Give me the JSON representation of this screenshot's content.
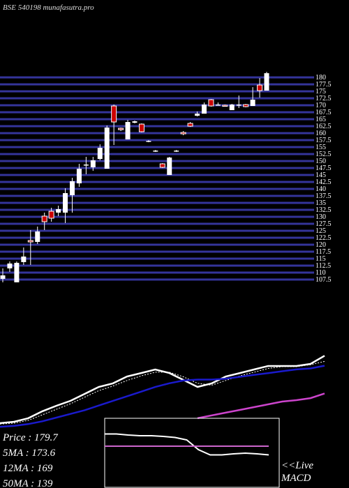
{
  "chart_data": [
    {
      "type": "candlestick",
      "title": "BSE 540198 munafasutra.pro",
      "open": [
        107.75,
        111.5,
        106.5,
        113.75,
        121.5,
        121,
        130.25,
        132,
        131.5,
        131.5,
        137.75,
        142,
        148.5,
        147.75,
        150.75,
        147.25,
        169.75,
        161.75,
        157.75,
        163.75,
        163.25,
        157,
        153.5,
        149,
        145,
        153.5,
        160.25,
        163.5,
        166.25,
        167,
        172,
        170,
        170,
        168.25,
        170,
        170.25,
        169.75,
        177.25,
        175.25
      ],
      "high": [
        111.5,
        114,
        114,
        119,
        125.25,
        126.5,
        131.5,
        133.25,
        134,
        140.25,
        144,
        149,
        151.5,
        151.5,
        156,
        162.75,
        170.25,
        162,
        164.75,
        164.5,
        163.5,
        157.5,
        154,
        149.25,
        151.5,
        154,
        160.75,
        164,
        167.75,
        171,
        172.25,
        171,
        170.25,
        170.5,
        173.5,
        170.5,
        176.5,
        179.75,
        182
      ],
      "low": [
        106.5,
        110.25,
        106.5,
        112.75,
        112.75,
        120.25,
        125.25,
        128.25,
        130.25,
        127.75,
        131.5,
        140.75,
        145.25,
        146.5,
        150.25,
        147.25,
        155.75,
        160.75,
        157.75,
        163.5,
        160.25,
        156.75,
        153.25,
        147.5,
        145,
        153.25,
        159.25,
        162.25,
        166,
        167,
        169.5,
        170,
        169.5,
        168.25,
        169,
        169.25,
        169.75,
        172.75,
        175.25
      ],
      "close": [
        109,
        113.25,
        113.5,
        115.75,
        121,
        124.75,
        128.25,
        129.5,
        132.75,
        138.5,
        142.75,
        147.25,
        148.75,
        150.25,
        154.75,
        162,
        164,
        161.25,
        164,
        164.25,
        160.5,
        157.25,
        153.75,
        147.75,
        151.25,
        153.75,
        159.75,
        162.5,
        167,
        170.25,
        169.75,
        170.25,
        169.75,
        170.25,
        170.25,
        169.5,
        172,
        175.25,
        181.5
      ],
      "up_color": "#ffffff",
      "down_color": "#cc0000",
      "ylim": [
        106.5,
        182
      ],
      "yticks": [
        107.5,
        110,
        112.5,
        115,
        117.5,
        120,
        122.5,
        125,
        127.5,
        130,
        132.5,
        135,
        137.5,
        140,
        142.5,
        145,
        147.5,
        150,
        152.5,
        155,
        157.5,
        160,
        162.5,
        165,
        167.5,
        170,
        172.5,
        175,
        177.5,
        180
      ],
      "grid": true,
      "grid_color": "#34349a"
    },
    {
      "type": "line",
      "ylim": [
        37,
        195
      ],
      "series": [
        {
          "name": "Price : 179.7",
          "color": "#ffffff",
          "dash": false,
          "values": [
            107,
            108.5,
            112.3,
            119.8,
            125.8,
            131.1,
            138.6,
            146.1,
            149.9,
            157.4,
            161.1,
            164.9,
            161.1,
            153.6,
            146.1,
            149.9,
            157.4,
            161.1,
            164.9,
            168.7,
            168.7,
            168.7,
            170.9,
            179.7
          ]
        },
        {
          "name": "5MA : 173.6",
          "color": "#ffffff",
          "dash": true,
          "values": [
            106,
            107,
            110,
            116,
            122,
            128,
            135,
            142,
            147,
            153,
            158,
            162,
            162,
            157,
            150,
            148,
            153,
            158,
            162,
            166,
            168,
            168,
            170,
            173.6
          ]
        },
        {
          "name": "12MA : 169",
          "color": "#1a1acc",
          "dash": false,
          "values": [
            103,
            104,
            106,
            109,
            113,
            117,
            121,
            126,
            131,
            136,
            141,
            146,
            150,
            153,
            154,
            154,
            155,
            157,
            159,
            161,
            163,
            165,
            166,
            169
          ]
        },
        {
          "name": "50MA : 139",
          "color": "#cc44cc",
          "dash": false,
          "values": [
            null,
            null,
            null,
            null,
            null,
            null,
            null,
            null,
            null,
            null,
            null,
            null,
            null,
            null,
            112.3,
            115.3,
            118.3,
            121.3,
            124.3,
            127.3,
            130.3,
            131.8,
            134,
            139
          ]
        }
      ]
    },
    {
      "type": "macd",
      "label_lines": [
        "<<Live",
        "MACD"
      ],
      "ylim": [
        -1,
        1
      ],
      "series": [
        {
          "color": "#ffffff",
          "values": [
            0.55,
            0.55,
            0.52,
            0.5,
            0.5,
            0.48,
            0.45,
            0.38,
            0.1,
            -0.05,
            -0.05,
            -0.02,
            0.0,
            -0.02,
            -0.05
          ]
        },
        {
          "color": "#cc66cc",
          "values": [
            0.2,
            0.2,
            0.2,
            0.2,
            0.2,
            0.2,
            0.2,
            0.2,
            0.2,
            0.2,
            0.2,
            0.2,
            0.2,
            0.2,
            0.2
          ]
        }
      ]
    }
  ]
}
